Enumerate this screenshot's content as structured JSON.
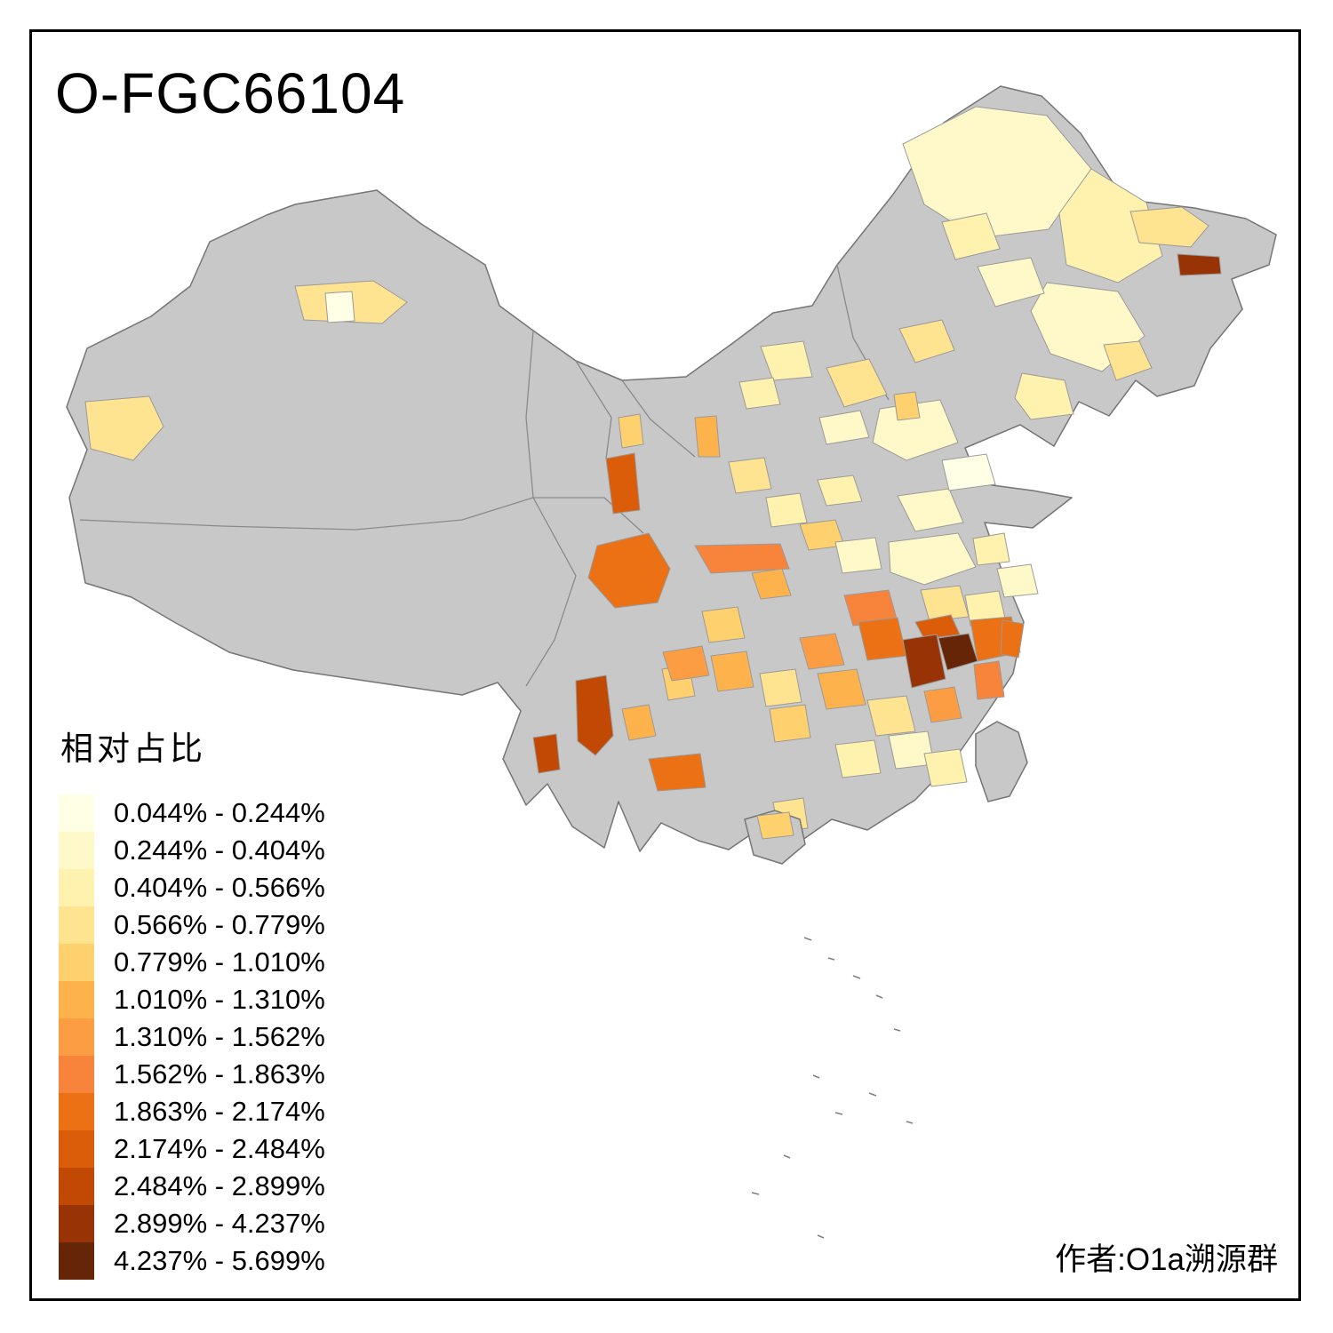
{
  "title": "O-FGC66104",
  "attribution": "作者:O1a溯源群",
  "legend": {
    "title": "相对占比",
    "classes": [
      {
        "label": "0.044% - 0.244%",
        "color": "#FFFFE5"
      },
      {
        "label": "0.244% - 0.404%",
        "color": "#FFF9C9"
      },
      {
        "label": "0.404% - 0.566%",
        "color": "#FFF2AE"
      },
      {
        "label": "0.566% - 0.779%",
        "color": "#FEE391"
      },
      {
        "label": "0.779% - 1.010%",
        "color": "#FED16E"
      },
      {
        "label": "1.010% - 1.310%",
        "color": "#FEB24C"
      },
      {
        "label": "1.310% - 1.562%",
        "color": "#FD9D43"
      },
      {
        "label": "1.562% - 1.863%",
        "color": "#F8843B"
      },
      {
        "label": "1.863% - 2.174%",
        "color": "#EC7014"
      },
      {
        "label": "2.174% - 2.484%",
        "color": "#DB5D0A"
      },
      {
        "label": "2.484% - 2.899%",
        "color": "#C24904"
      },
      {
        "label": "2.899% - 4.237%",
        "color": "#973304"
      },
      {
        "label": "4.237% - 5.699%",
        "color": "#662506"
      }
    ]
  },
  "map": {
    "no_data_color": "#C8C8C8",
    "boundary_color": "#757575",
    "region_border_color": "#9A9A9A",
    "island_color": "#C8C8C8",
    "background_color": "#FFFFFF",
    "frame_color": "#000000"
  }
}
